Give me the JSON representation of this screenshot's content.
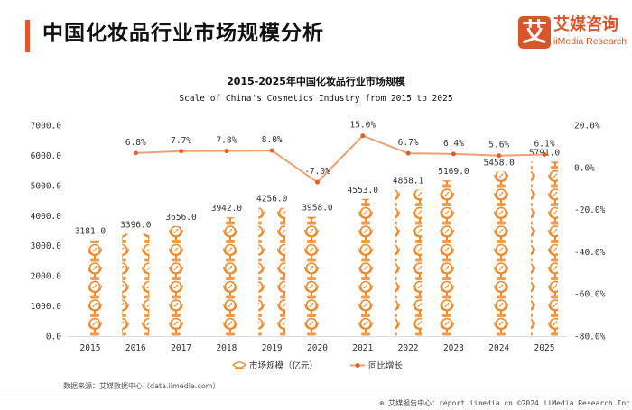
{
  "header": {
    "title": "中国化妆品行业市场规模分析",
    "logo_mark": "艾",
    "logo_cn": "艾媒咨询",
    "logo_en": "iiMedia Research"
  },
  "chart_data": {
    "type": "bar+line",
    "title": "2015-2025年中国化妆品行业市场规模",
    "subtitle": "Scale  of China's Cosmetics Industry from 2015 to 2025",
    "categories": [
      "2015",
      "2016",
      "2017",
      "2018",
      "2019",
      "2020",
      "2021",
      "2022",
      "2023",
      "2024",
      "2025"
    ],
    "series": [
      {
        "name": "市场规模（亿元）",
        "type": "pictorial-bar",
        "axis": "left",
        "values": [
          3181.0,
          3396.0,
          3656.0,
          3942.0,
          4256.0,
          3958.0,
          4553.0,
          4858.1,
          5169.0,
          5458.0,
          5791.0
        ],
        "labels": [
          "3181.0",
          "3396.0",
          "3656.0",
          "3942.0",
          "4256.0",
          "3958.0",
          "4553.0",
          "4858.1",
          "5169.0",
          "5458.0",
          "5791.0"
        ]
      },
      {
        "name": "同比增长",
        "type": "line",
        "axis": "right",
        "values": [
          null,
          6.8,
          7.7,
          7.8,
          8.0,
          -7.0,
          15.0,
          6.7,
          6.4,
          5.6,
          6.1
        ],
        "labels": [
          "",
          "6.8%",
          "7.7%",
          "7.8%",
          "8.0%",
          "-7.0%",
          "15.0%",
          "6.7%",
          "6.4%",
          "5.6%",
          "6.1%"
        ]
      }
    ],
    "y_left": {
      "range": [
        0,
        7000
      ],
      "ticks": [
        "0.0",
        "1000.0",
        "2000.0",
        "3000.0",
        "4000.0",
        "5000.0",
        "6000.0",
        "7000.0"
      ]
    },
    "y_right": {
      "range": [
        -80,
        20
      ],
      "ticks": [
        "-80.0%",
        "-60.0%",
        "-40.0%",
        "-20.0%",
        "0.0%",
        "20.0%"
      ]
    },
    "grid": false,
    "legend": "bottom",
    "colors": {
      "bar": "#f08a2c",
      "line": "#f0a070",
      "marker": "#e0602a"
    }
  },
  "source": "数据来源：艾媒数据中心（data.iimedia.com）",
  "footer": "艾媒报告中心：report.iimedia.cn  ©2024  iiMedia Research  Inc"
}
